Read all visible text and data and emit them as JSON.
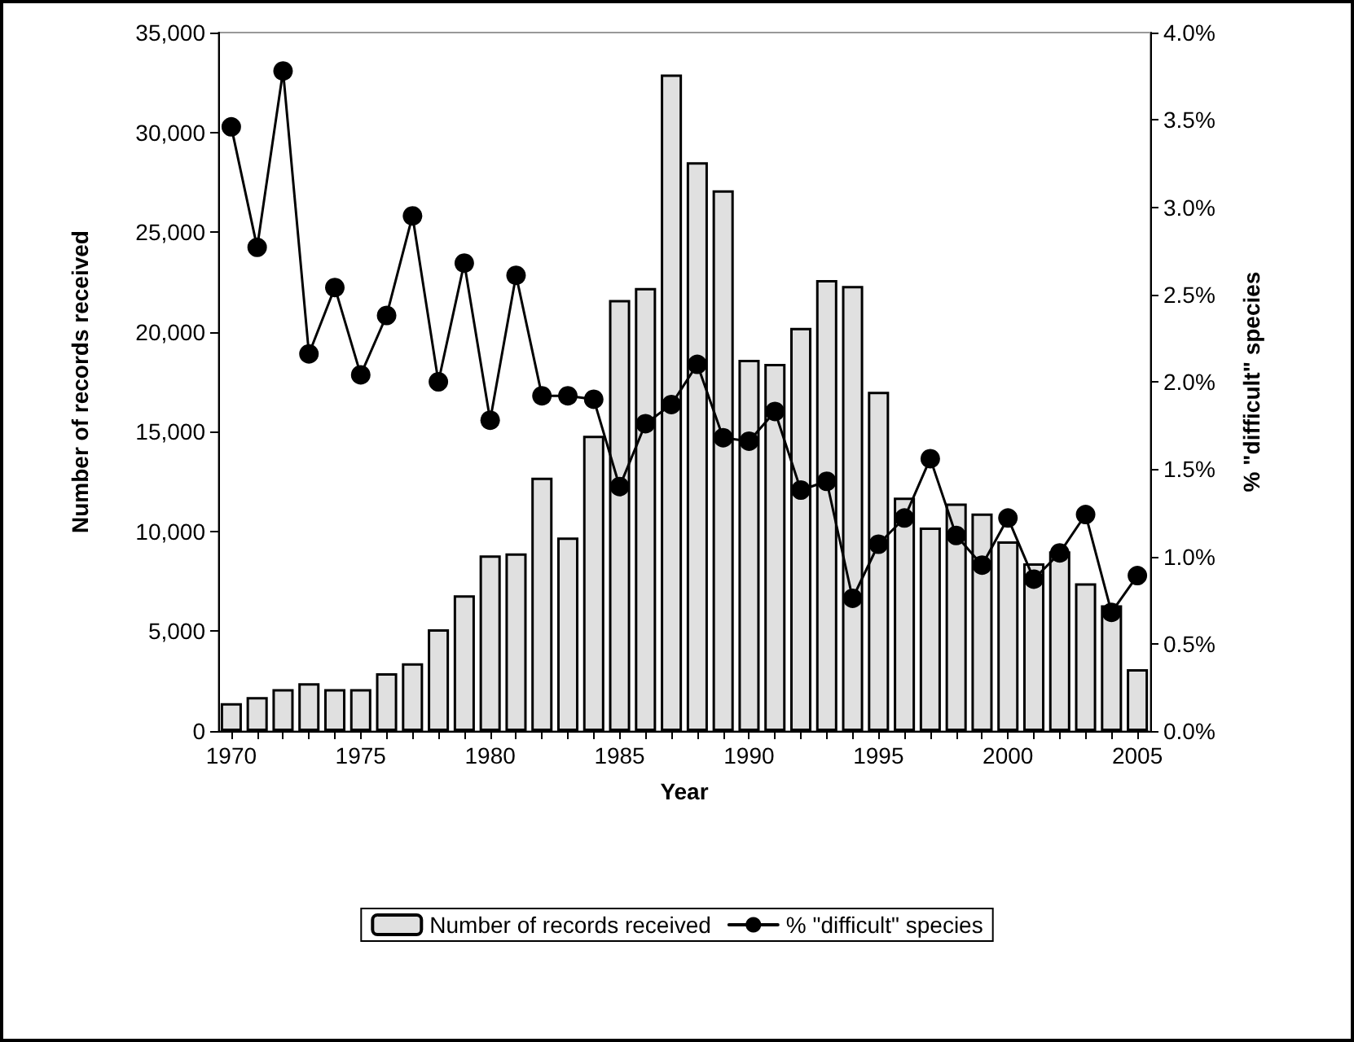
{
  "chart_data": {
    "type": "bar",
    "xlabel": "Year",
    "ylabel": "Number of records received",
    "y2label": "% \"difficult\" species",
    "categories": [
      "1970",
      null,
      null,
      null,
      null,
      "1975",
      null,
      null,
      null,
      null,
      "1980",
      null,
      null,
      null,
      null,
      "1985",
      null,
      null,
      null,
      null,
      "1990",
      null,
      null,
      null,
      null,
      "1995",
      null,
      null,
      null,
      null,
      "2000",
      null,
      null,
      null,
      null,
      "2005"
    ],
    "series": [
      {
        "name": "Number of records received",
        "color": "#e0e0e0",
        "values": [
          1400,
          1700,
          2100,
          2400,
          2100,
          2100,
          2900,
          3400,
          5100,
          6800,
          8800,
          8900,
          12700,
          9700,
          14800,
          21600,
          22200,
          32900,
          28500,
          27100,
          18600,
          18400,
          20200,
          22600,
          22300,
          17000,
          11700,
          10200,
          11400,
          10900,
          9500,
          8400,
          9000,
          7400,
          6300,
          3100
        ]
      },
      {
        "type": "line",
        "axis": "y2",
        "name": "% \"difficult\" species",
        "color": "#000000",
        "marker": "circle",
        "values": [
          3.46,
          2.77,
          3.78,
          2.16,
          2.54,
          2.04,
          2.38,
          2.95,
          2.0,
          2.68,
          1.78,
          2.61,
          1.92,
          1.92,
          1.9,
          1.4,
          1.76,
          1.87,
          2.1,
          1.68,
          1.66,
          1.83,
          1.38,
          1.43,
          0.76,
          1.07,
          1.22,
          1.56,
          1.12,
          0.95,
          1.22,
          0.87,
          1.02,
          1.24,
          0.68,
          0.89
        ]
      }
    ],
    "ylim": [
      0,
      35000
    ],
    "yticks": [
      {
        "value": 0,
        "label": "0"
      },
      {
        "value": 5000,
        "label": "5,000"
      },
      {
        "value": 10000,
        "label": "10,000"
      },
      {
        "value": 15000,
        "label": "15,000"
      },
      {
        "value": 20000,
        "label": "20,000"
      },
      {
        "value": 25000,
        "label": "25,000"
      },
      {
        "value": 30000,
        "label": "30,000"
      },
      {
        "value": 35000,
        "label": "35,000"
      }
    ],
    "y2lim": [
      0,
      4
    ],
    "y2ticks": [
      {
        "value": 0,
        "label": "0.0%"
      },
      {
        "value": 0.5,
        "label": "0.5%"
      },
      {
        "value": 1,
        "label": "1.0%"
      },
      {
        "value": 1.5,
        "label": "1.5%"
      },
      {
        "value": 2,
        "label": "2.0%"
      },
      {
        "value": 2.5,
        "label": "2.5%"
      },
      {
        "value": 3,
        "label": "3.0%"
      },
      {
        "value": 3.5,
        "label": "3.5%"
      },
      {
        "value": 4,
        "label": "4.0%"
      }
    ],
    "legend": "bottom",
    "grid": false
  }
}
